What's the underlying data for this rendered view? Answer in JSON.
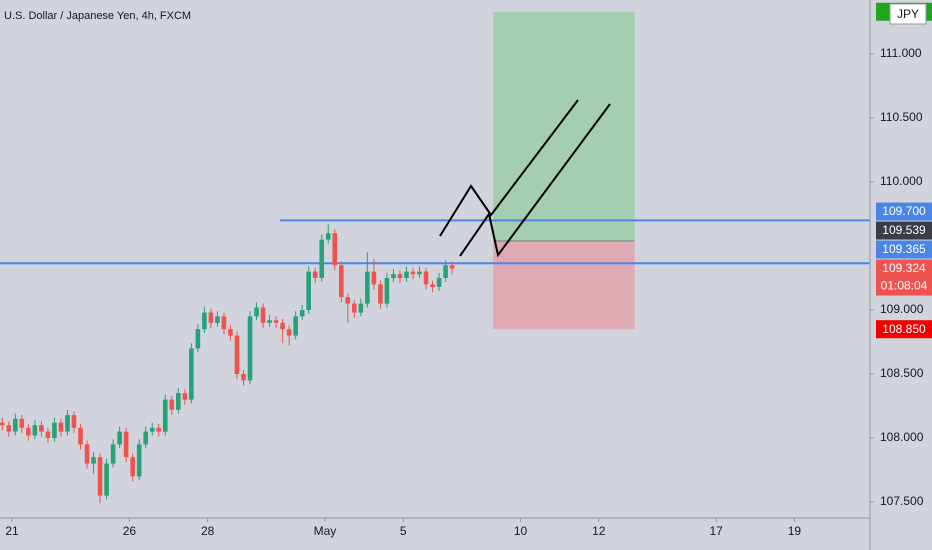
{
  "chart_data": {
    "type": "candlestick",
    "title": "U.S. Dollar / Japanese Yen, 4h, FXCM",
    "currency": "JPY",
    "up_color": "#26a17a",
    "down_color": "#ef5350",
    "xlim": [
      -0.35,
      133.1
    ],
    "ylim": [
      107.375,
      111.422
    ],
    "xticks": [
      {
        "value": 1.5,
        "label": "21"
      },
      {
        "value": 19.5,
        "label": "26"
      },
      {
        "value": 31.5,
        "label": "28"
      },
      {
        "value": 49.5,
        "label": "May"
      },
      {
        "value": 61.5,
        "label": "5"
      },
      {
        "value": 79.5,
        "label": "10"
      },
      {
        "value": 91.5,
        "label": "12"
      },
      {
        "value": 109.5,
        "label": "17"
      },
      {
        "value": 121.5,
        "label": "19"
      }
    ],
    "yticks": [
      {
        "value": 111,
        "label": "111.000"
      },
      {
        "value": 110.5,
        "label": "110.500"
      },
      {
        "value": 110,
        "label": "110.000"
      },
      {
        "value": 109,
        "label": "109.000"
      },
      {
        "value": 108.5,
        "label": "108.500"
      },
      {
        "value": 108,
        "label": "108.000"
      },
      {
        "value": 107.5,
        "label": "107.500"
      }
    ],
    "grid": false,
    "ohlc": [
      [
        108.12,
        108.16,
        108.06,
        108.1
      ],
      [
        108.1,
        108.13,
        108.01,
        108.05
      ],
      [
        108.05,
        108.19,
        108.02,
        108.15
      ],
      [
        108.15,
        108.18,
        108.04,
        108.08
      ],
      [
        108.08,
        108.11,
        107.98,
        108.02
      ],
      [
        108.02,
        108.14,
        107.99,
        108.1
      ],
      [
        108.1,
        108.13,
        108.01,
        108.05
      ],
      [
        108.05,
        108.08,
        107.96,
        108.0
      ],
      [
        108.0,
        108.16,
        107.97,
        108.12
      ],
      [
        108.12,
        108.15,
        108.01,
        108.05
      ],
      [
        108.05,
        108.22,
        108.02,
        108.18
      ],
      [
        108.18,
        108.21,
        108.04,
        108.08
      ],
      [
        108.08,
        108.11,
        107.91,
        107.95
      ],
      [
        107.95,
        107.98,
        107.76,
        107.8
      ],
      [
        107.8,
        107.89,
        107.72,
        107.85
      ],
      [
        107.85,
        107.88,
        107.49,
        107.55
      ],
      [
        107.55,
        107.84,
        107.52,
        107.8
      ],
      [
        107.8,
        107.99,
        107.77,
        107.95
      ],
      [
        107.95,
        108.09,
        107.92,
        108.05
      ],
      [
        108.05,
        108.08,
        107.81,
        107.85
      ],
      [
        107.85,
        107.88,
        107.66,
        107.7
      ],
      [
        107.7,
        107.99,
        107.67,
        107.95
      ],
      [
        107.95,
        108.09,
        107.92,
        108.05
      ],
      [
        108.05,
        108.12,
        108.02,
        108.08
      ],
      [
        108.08,
        108.11,
        108.01,
        108.05
      ],
      [
        108.05,
        108.34,
        108.02,
        108.3
      ],
      [
        108.3,
        108.33,
        108.18,
        108.22
      ],
      [
        108.22,
        108.39,
        108.19,
        108.35
      ],
      [
        108.35,
        108.38,
        108.26,
        108.3
      ],
      [
        108.3,
        108.74,
        108.27,
        108.7
      ],
      [
        108.7,
        108.89,
        108.67,
        108.85
      ],
      [
        108.85,
        109.03,
        108.82,
        108.98
      ],
      [
        108.98,
        109.01,
        108.86,
        108.9
      ],
      [
        108.9,
        108.99,
        108.87,
        108.95
      ],
      [
        108.95,
        108.98,
        108.81,
        108.85
      ],
      [
        108.85,
        108.88,
        108.76,
        108.8
      ],
      [
        108.8,
        108.83,
        108.46,
        108.5
      ],
      [
        108.5,
        108.53,
        108.41,
        108.45
      ],
      [
        108.45,
        108.99,
        108.42,
        108.95
      ],
      [
        108.95,
        109.06,
        108.92,
        109.02
      ],
      [
        109.02,
        109.05,
        108.86,
        108.9
      ],
      [
        108.9,
        108.96,
        108.87,
        108.92
      ],
      [
        108.92,
        108.95,
        108.86,
        108.9
      ],
      [
        108.9,
        108.93,
        108.74,
        108.85
      ],
      [
        108.85,
        108.88,
        108.72,
        108.8
      ],
      [
        108.8,
        108.99,
        108.77,
        108.95
      ],
      [
        108.95,
        109.04,
        108.92,
        109.0
      ],
      [
        109.0,
        109.34,
        108.97,
        109.3
      ],
      [
        109.3,
        109.33,
        109.21,
        109.25
      ],
      [
        109.25,
        109.59,
        109.22,
        109.55
      ],
      [
        109.55,
        109.67,
        109.52,
        109.6
      ],
      [
        109.6,
        109.63,
        109.31,
        109.35
      ],
      [
        109.35,
        109.38,
        109.06,
        109.1
      ],
      [
        109.1,
        109.13,
        108.9,
        109.05
      ],
      [
        109.05,
        109.08,
        108.94,
        108.98
      ],
      [
        108.98,
        109.09,
        108.95,
        109.05
      ],
      [
        109.05,
        109.45,
        109.02,
        109.3
      ],
      [
        109.3,
        109.4,
        109.16,
        109.2
      ],
      [
        109.2,
        109.23,
        109.01,
        109.05
      ],
      [
        109.05,
        109.29,
        109.02,
        109.25
      ],
      [
        109.25,
        109.32,
        109.22,
        109.28
      ],
      [
        109.28,
        109.31,
        109.21,
        109.25
      ],
      [
        109.25,
        109.34,
        109.22,
        109.3
      ],
      [
        109.3,
        109.33,
        109.24,
        109.28
      ],
      [
        109.28,
        109.34,
        109.25,
        109.3
      ],
      [
        109.3,
        109.33,
        109.16,
        109.2
      ],
      [
        109.2,
        109.23,
        109.14,
        109.18
      ],
      [
        109.18,
        109.29,
        109.15,
        109.25
      ],
      [
        109.25,
        109.39,
        109.22,
        109.35
      ],
      [
        109.35,
        109.38,
        109.28,
        109.324
      ]
    ],
    "hlines": [
      {
        "value": 109.7,
        "start": 42.6,
        "color": "#4a86e8"
      },
      {
        "value": 109.365,
        "color": "#4a86e8"
      }
    ],
    "position": {
      "start": 75.3,
      "end": 97.0,
      "target": 111.33,
      "entry": 109.539,
      "stop": 108.85,
      "profit_color": "#a5cdb0",
      "loss_color": "#dfaab3"
    },
    "price_labels": [
      {
        "value": 109.7,
        "label": "109.700",
        "color": "#4a86e8"
      },
      {
        "value": 109.539,
        "label": "109.539",
        "color": "#3a3d45"
      },
      {
        "value": 109.365,
        "label": "109.365",
        "color": "#4a86e8"
      },
      {
        "value": 109.324,
        "label": "109.324",
        "color": "#ef5350",
        "countdown": "01:08:04"
      },
      {
        "value": 108.85,
        "label": "108.850",
        "color": "#f00000"
      }
    ],
    "target_color": "#1fa51f"
  }
}
